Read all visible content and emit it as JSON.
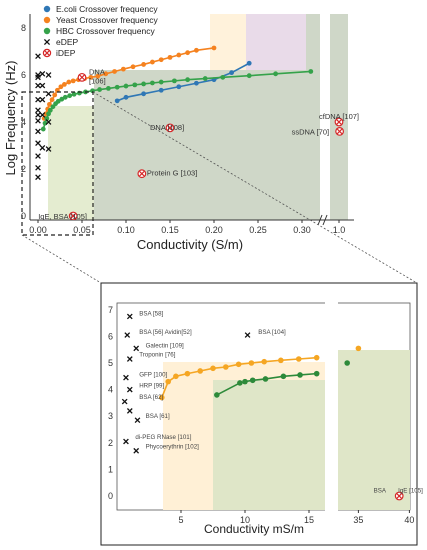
{
  "chart_data": [
    {
      "type": "scatter",
      "title": "",
      "xlabel": "Conductivity (S/m)",
      "ylabel": "Log Frequency (Hz)",
      "xlim": [
        -0.02,
        0.37
      ],
      "ylim": [
        -0.4,
        8.6
      ],
      "x_ticks": [
        "0.00",
        "0.05",
        "0.10",
        "0.15",
        "0.20",
        "0.25",
        "0.30",
        "1.0"
      ],
      "y_ticks": [
        "0",
        "2",
        "4",
        "6",
        "8"
      ],
      "legend_position": "top-left",
      "grid": false,
      "axis_break": "between 0.30 and 1.0",
      "series": [
        {
          "name": "E.coli Crossover frequency",
          "color": "#2f77b5",
          "style": "line+marker",
          "x": [
            0.09,
            0.1,
            0.12,
            0.14,
            0.16,
            0.18,
            0.2,
            0.22,
            0.24
          ],
          "y": [
            4.9,
            5.05,
            5.2,
            5.35,
            5.5,
            5.65,
            5.8,
            6.1,
            6.5
          ]
        },
        {
          "name": "Yeast Crossover frequency",
          "color": "#f5821f",
          "style": "line+marker",
          "x": [
            0.007,
            0.009,
            0.011,
            0.013,
            0.016,
            0.019,
            0.022,
            0.026,
            0.03,
            0.035,
            0.04,
            0.046,
            0.053,
            0.06,
            0.068,
            0.077,
            0.087,
            0.097,
            0.108,
            0.12,
            0.13,
            0.14,
            0.15,
            0.16,
            0.17,
            0.18,
            0.2
          ],
          "y": [
            4.15,
            4.35,
            4.55,
            4.75,
            4.95,
            5.15,
            5.35,
            5.5,
            5.6,
            5.7,
            5.75,
            5.8,
            5.85,
            5.9,
            5.95,
            6.05,
            6.15,
            6.25,
            6.35,
            6.45,
            6.55,
            6.65,
            6.75,
            6.85,
            6.95,
            7.05,
            7.15
          ]
        },
        {
          "name": "HBC Crossover frequency",
          "color": "#35a24a",
          "style": "line+marker",
          "x": [
            0.006,
            0.008,
            0.01,
            0.012,
            0.014,
            0.017,
            0.02,
            0.023,
            0.027,
            0.031,
            0.036,
            0.041,
            0.047,
            0.054,
            0.062,
            0.07,
            0.08,
            0.09,
            0.1,
            0.11,
            0.12,
            0.13,
            0.14,
            0.155,
            0.17,
            0.19,
            0.21,
            0.24,
            0.27,
            0.31
          ],
          "y": [
            3.7,
            3.95,
            4.15,
            4.35,
            4.5,
            4.65,
            4.78,
            4.88,
            4.97,
            5.05,
            5.12,
            5.18,
            5.23,
            5.28,
            5.33,
            5.38,
            5.43,
            5.48,
            5.53,
            5.58,
            5.62,
            5.66,
            5.7,
            5.75,
            5.8,
            5.85,
            5.9,
            5.97,
            6.05,
            6.15
          ]
        },
        {
          "name": "eDEP",
          "color": "#111111",
          "style": "x-marker",
          "x": [
            0.0,
            0.0,
            0.0,
            0.0,
            0.0,
            0.0,
            0.0,
            0.0,
            0.0,
            0.0,
            0.0,
            0.0,
            0.0,
            0.005,
            0.005,
            0.005,
            0.005,
            0.012,
            0.012,
            0.012,
            0.005,
            0.012
          ],
          "y": [
            6.8,
            6.0,
            5.55,
            4.95,
            4.5,
            4.05,
            3.6,
            3.1,
            2.55,
            2.05,
            1.65,
            5.9,
            4.3,
            6.05,
            5.55,
            4.95,
            4.3,
            6.0,
            5.2,
            4.0,
            2.9,
            2.85
          ]
        },
        {
          "name": "iDEP",
          "color": "#d62728",
          "style": "circled-x",
          "x": [
            0.04,
            0.118,
            0.15,
            0.05,
            0.365,
            0.368
          ],
          "y": [
            0.0,
            1.8,
            3.75,
            5.9,
            4.0,
            3.6
          ]
        }
      ],
      "annotations": [
        {
          "text": "DNA\n[106]",
          "x": 0.05,
          "y": 5.9
        },
        {
          "text": "DNA [108]",
          "x": 0.15,
          "y": 3.75
        },
        {
          "text": "Protein G [103]",
          "x": 0.118,
          "y": 1.8
        },
        {
          "text": "IgE, BSA [105]",
          "x": 0.04,
          "y": 0.0
        },
        {
          "text": "cfDNA [107]",
          "x": 0.365,
          "y": 4.0
        },
        {
          "text": "ssDNA [70]",
          "x": 0.368,
          "y": 3.6
        }
      ]
    },
    {
      "type": "scatter",
      "title": "",
      "xlabel": "Conductivity mS/m",
      "ylabel": "",
      "xlim": [
        0,
        40
      ],
      "ylim": [
        -0.4,
        7.4
      ],
      "x_ticks": [
        "5",
        "10",
        "15",
        "35",
        "40"
      ],
      "y_ticks": [
        "0",
        "1",
        "2",
        "3",
        "4",
        "5",
        "6",
        "7"
      ],
      "axis_break": "between 17 and 33",
      "series": [
        {
          "name": "Yeast Crossover frequency",
          "color": "#f5a623",
          "style": "line+marker",
          "x": [
            3.5,
            4.0,
            4.6,
            5.5,
            6.5,
            7.5,
            8.5,
            9.5,
            10.5,
            11.5,
            12.8,
            14.2,
            15.6,
            35.0
          ],
          "y": [
            3.7,
            4.3,
            4.5,
            4.6,
            4.7,
            4.8,
            4.85,
            4.95,
            5.0,
            5.05,
            5.1,
            5.15,
            5.2,
            5.55
          ]
        },
        {
          "name": "HBC Crossover frequency",
          "color": "#2d8a3a",
          "style": "line+marker",
          "x": [
            7.8,
            9.6,
            10.0,
            10.6,
            11.6,
            13.0,
            14.3,
            15.6,
            33.9
          ],
          "y": [
            3.8,
            4.25,
            4.3,
            4.35,
            4.4,
            4.5,
            4.55,
            4.6,
            5.0
          ]
        },
        {
          "name": "eDEP",
          "color": "#111111",
          "style": "x-marker",
          "x": [
            1.0,
            0.8,
            1.5,
            1.0,
            0.7,
            1.0,
            0.6,
            1.0,
            1.6,
            0.7,
            1.5,
            10.2
          ],
          "y": [
            6.75,
            6.05,
            5.55,
            5.15,
            4.45,
            4.0,
            3.55,
            3.2,
            2.85,
            2.05,
            1.7,
            6.05
          ]
        },
        {
          "name": "iDEP",
          "color": "#d62728",
          "style": "circled-x",
          "x": [
            39.0
          ],
          "y": [
            0.0
          ]
        }
      ],
      "annotations": [
        {
          "text": "BSA [58]",
          "x": 1.5,
          "y": 6.75
        },
        {
          "text": "BSA [56] Avidin[52]",
          "x": 1.5,
          "y": 6.05
        },
        {
          "text": "Galectin [109]",
          "x": 2.0,
          "y": 5.55
        },
        {
          "text": "Troponin [76]",
          "x": 1.5,
          "y": 5.2
        },
        {
          "text": "GFP [100]",
          "x": 1.5,
          "y": 4.45
        },
        {
          "text": "HRP [99]",
          "x": 1.5,
          "y": 4.05
        },
        {
          "text": "BSA [62]",
          "x": 1.5,
          "y": 3.6
        },
        {
          "text": "BSA [61]",
          "x": 2.0,
          "y": 2.9
        },
        {
          "text": "di-PEG RNase [101]",
          "x": 1.2,
          "y": 2.1
        },
        {
          "text": "Phycoerythrin [102]",
          "x": 2.0,
          "y": 1.75
        },
        {
          "text": "BSA [104]",
          "x": 10.8,
          "y": 6.05
        },
        {
          "text": "BSA",
          "x": 36.2,
          "y": 0.1
        },
        {
          "text": "IgE [105]",
          "x": 38.6,
          "y": 0.1
        }
      ]
    }
  ]
}
